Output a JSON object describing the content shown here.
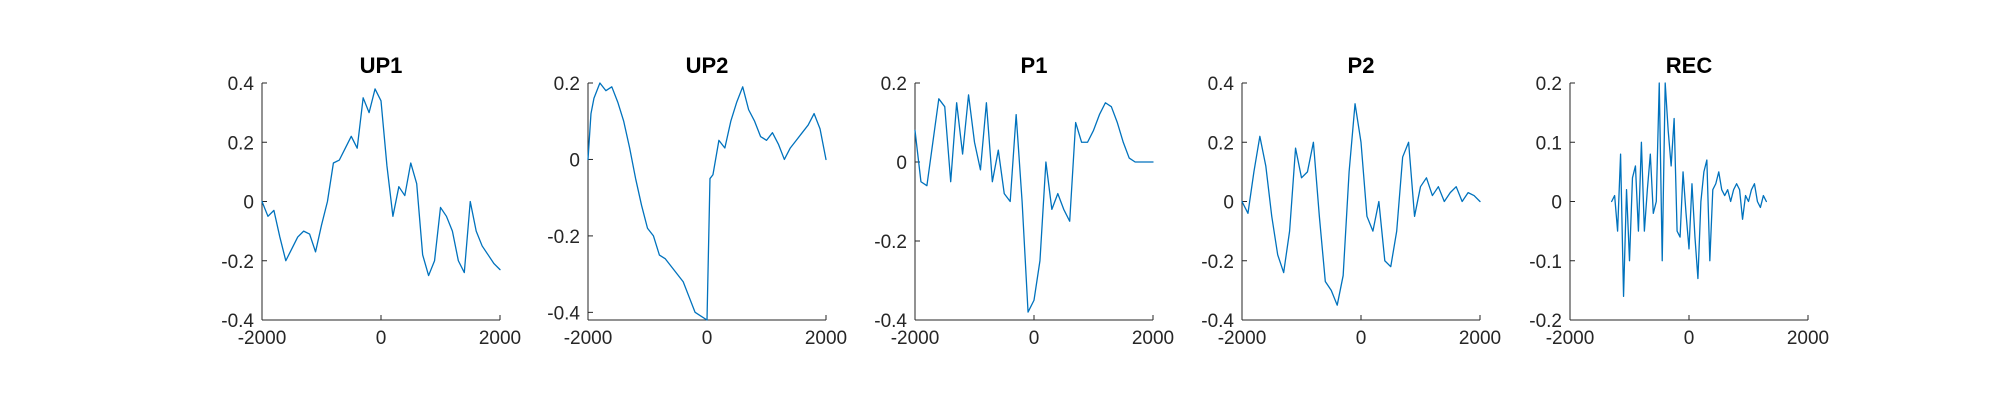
{
  "colors": {
    "series": "#0072BD",
    "axis": "#262626"
  },
  "chart_data": [
    {
      "type": "line",
      "title": "UP1",
      "xlim": [
        -2000,
        2000
      ],
      "ylim": [
        -0.4,
        0.4
      ],
      "xticks": [
        -2000,
        0,
        2000
      ],
      "xtick_labels": [
        "-2000",
        "0",
        "2000"
      ],
      "yticks": [
        -0.4,
        -0.2,
        0,
        0.2,
        0.4
      ],
      "ytick_labels": [
        "-0.4",
        "-0.2",
        "0",
        "0.2",
        "0.4"
      ],
      "series": [
        {
          "x": [
            -2000,
            -1900,
            -1800,
            -1700,
            -1600,
            -1500,
            -1400,
            -1300,
            -1200,
            -1100,
            -1000,
            -900,
            -800,
            -700,
            -600,
            -500,
            -400,
            -300,
            -200,
            -100,
            0,
            100,
            200,
            300,
            400,
            500,
            600,
            700,
            800,
            900,
            1000,
            1100,
            1200,
            1300,
            1400,
            1500,
            1600,
            1700,
            1800,
            1900,
            2000
          ],
          "y": [
            0.0,
            -0.05,
            -0.03,
            -0.12,
            -0.2,
            -0.16,
            -0.12,
            -0.1,
            -0.11,
            -0.17,
            -0.08,
            0.0,
            0.13,
            0.14,
            0.18,
            0.22,
            0.18,
            0.35,
            0.3,
            0.38,
            0.34,
            0.12,
            -0.05,
            0.05,
            0.02,
            0.13,
            0.06,
            -0.18,
            -0.25,
            -0.2,
            -0.02,
            -0.05,
            -0.1,
            -0.2,
            -0.24,
            0.0,
            -0.1,
            -0.15,
            -0.18,
            -0.21,
            -0.23
          ]
        }
      ]
    },
    {
      "type": "line",
      "title": "UP2",
      "xlim": [
        -2000,
        2000
      ],
      "ylim": [
        -0.42,
        0.2
      ],
      "xticks": [
        -2000,
        0,
        2000
      ],
      "xtick_labels": [
        "-2000",
        "0",
        "2000"
      ],
      "yticks": [
        -0.4,
        -0.2,
        0,
        0.2
      ],
      "ytick_labels": [
        "-0.4",
        "-0.2",
        "0",
        "0.2"
      ],
      "series": [
        {
          "x": [
            -2000,
            -1950,
            -1900,
            -1800,
            -1700,
            -1600,
            -1500,
            -1400,
            -1300,
            -1200,
            -1100,
            -1000,
            -900,
            -800,
            -700,
            -600,
            -500,
            -400,
            -300,
            -200,
            -100,
            0,
            50,
            100,
            200,
            300,
            400,
            500,
            600,
            700,
            800,
            900,
            1000,
            1100,
            1200,
            1300,
            1400,
            1500,
            1600,
            1700,
            1800,
            1900,
            2000
          ],
          "y": [
            0.0,
            0.12,
            0.16,
            0.2,
            0.18,
            0.19,
            0.15,
            0.1,
            0.03,
            -0.05,
            -0.12,
            -0.18,
            -0.2,
            -0.25,
            -0.26,
            -0.28,
            -0.3,
            -0.32,
            -0.36,
            -0.4,
            -0.41,
            -0.42,
            -0.05,
            -0.04,
            0.05,
            0.03,
            0.1,
            0.15,
            0.19,
            0.13,
            0.1,
            0.06,
            0.05,
            0.07,
            0.04,
            0.0,
            0.03,
            0.05,
            0.07,
            0.09,
            0.12,
            0.08,
            0.0
          ]
        }
      ]
    },
    {
      "type": "line",
      "title": "P1",
      "xlim": [
        -2000,
        2000
      ],
      "ylim": [
        -0.4,
        0.2
      ],
      "xticks": [
        -2000,
        0,
        2000
      ],
      "xtick_labels": [
        "-2000",
        "0",
        "2000"
      ],
      "yticks": [
        -0.4,
        -0.2,
        0,
        0.2
      ],
      "ytick_labels": [
        "-0.4",
        "-0.2",
        "0",
        "0.2"
      ],
      "series": [
        {
          "x": [
            -2000,
            -1900,
            -1800,
            -1700,
            -1600,
            -1500,
            -1400,
            -1300,
            -1200,
            -1100,
            -1000,
            -900,
            -800,
            -700,
            -600,
            -500,
            -400,
            -300,
            -200,
            -100,
            0,
            100,
            200,
            300,
            400,
            500,
            600,
            700,
            800,
            900,
            1000,
            1100,
            1200,
            1300,
            1400,
            1500,
            1600,
            1700,
            1800,
            1900,
            2000
          ],
          "y": [
            0.08,
            -0.05,
            -0.06,
            0.05,
            0.16,
            0.14,
            -0.05,
            0.15,
            0.02,
            0.17,
            0.05,
            -0.02,
            0.15,
            -0.05,
            0.03,
            -0.08,
            -0.1,
            0.12,
            -0.1,
            -0.38,
            -0.35,
            -0.25,
            0.0,
            -0.12,
            -0.08,
            -0.12,
            -0.15,
            0.1,
            0.05,
            0.05,
            0.08,
            0.12,
            0.15,
            0.14,
            0.1,
            0.05,
            0.01,
            0.0,
            0.0,
            0.0,
            0.0
          ]
        }
      ]
    },
    {
      "type": "line",
      "title": "P2",
      "xlim": [
        -2000,
        2000
      ],
      "ylim": [
        -0.4,
        0.4
      ],
      "xticks": [
        -2000,
        0,
        2000
      ],
      "xtick_labels": [
        "-2000",
        "0",
        "2000"
      ],
      "yticks": [
        -0.4,
        -0.2,
        0,
        0.2,
        0.4
      ],
      "ytick_labels": [
        "-0.4",
        "-0.2",
        "0",
        "0.2",
        "0.4"
      ],
      "series": [
        {
          "x": [
            -2000,
            -1900,
            -1800,
            -1700,
            -1600,
            -1500,
            -1400,
            -1300,
            -1200,
            -1100,
            -1000,
            -900,
            -800,
            -700,
            -600,
            -500,
            -400,
            -300,
            -200,
            -100,
            0,
            100,
            200,
            300,
            400,
            500,
            600,
            700,
            800,
            900,
            1000,
            1100,
            1200,
            1300,
            1400,
            1500,
            1600,
            1700,
            1800,
            1900,
            2000
          ],
          "y": [
            0.0,
            -0.04,
            0.1,
            0.22,
            0.12,
            -0.05,
            -0.18,
            -0.24,
            -0.1,
            0.18,
            0.08,
            0.1,
            0.2,
            -0.05,
            -0.27,
            -0.3,
            -0.35,
            -0.25,
            0.1,
            0.33,
            0.2,
            -0.05,
            -0.1,
            0.0,
            -0.2,
            -0.22,
            -0.1,
            0.15,
            0.2,
            -0.05,
            0.05,
            0.08,
            0.02,
            0.05,
            0.0,
            0.03,
            0.05,
            0.0,
            0.03,
            0.02,
            0.0
          ]
        }
      ]
    },
    {
      "type": "line",
      "title": "REC",
      "xlim": [
        -2000,
        2000
      ],
      "ylim": [
        -0.2,
        0.2
      ],
      "xticks": [
        -2000,
        0,
        2000
      ],
      "xtick_labels": [
        "-2000",
        "0",
        "2000"
      ],
      "yticks": [
        -0.2,
        -0.1,
        0,
        0.1,
        0.2
      ],
      "ytick_labels": [
        "-0.2",
        "-0.1",
        "0",
        "0.1",
        "0.2"
      ],
      "series": [
        {
          "x": [
            -1300,
            -1250,
            -1200,
            -1150,
            -1100,
            -1050,
            -1000,
            -950,
            -900,
            -850,
            -800,
            -750,
            -700,
            -650,
            -600,
            -550,
            -500,
            -450,
            -400,
            -350,
            -300,
            -250,
            -200,
            -150,
            -100,
            -50,
            0,
            50,
            100,
            150,
            200,
            250,
            300,
            350,
            400,
            450,
            500,
            550,
            600,
            650,
            700,
            750,
            800,
            850,
            900,
            950,
            1000,
            1050,
            1100,
            1150,
            1200,
            1250,
            1300
          ],
          "y": [
            0.0,
            0.01,
            -0.05,
            0.08,
            -0.16,
            0.02,
            -0.1,
            0.04,
            0.06,
            -0.05,
            0.1,
            -0.05,
            0.02,
            0.08,
            -0.02,
            0.0,
            0.2,
            -0.1,
            0.2,
            0.12,
            0.06,
            0.14,
            -0.05,
            -0.06,
            0.05,
            -0.02,
            -0.08,
            0.03,
            -0.06,
            -0.13,
            0.0,
            0.05,
            0.07,
            -0.1,
            0.02,
            0.03,
            0.05,
            0.02,
            0.01,
            0.02,
            0.0,
            0.02,
            0.03,
            0.02,
            -0.03,
            0.01,
            0.0,
            0.02,
            0.03,
            0.0,
            -0.01,
            0.01,
            0.0
          ]
        }
      ]
    }
  ]
}
